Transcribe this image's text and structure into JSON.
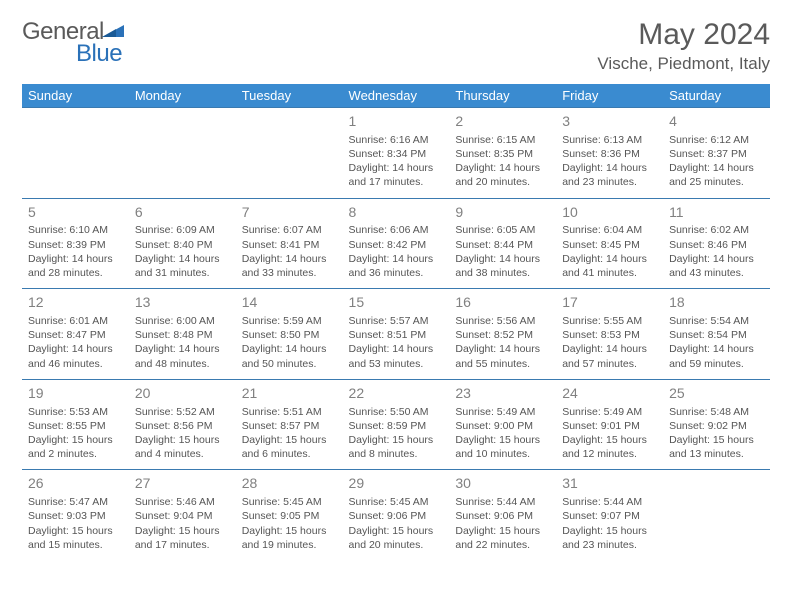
{
  "brand": {
    "part1": "General",
    "part2": "Blue"
  },
  "title": "May 2024",
  "location": "Vische, Piedmont, Italy",
  "colors": {
    "header_bg": "#3a8bd0",
    "header_text": "#ffffff",
    "border": "#3a7ab0",
    "text": "#555555",
    "daynum": "#808080",
    "brand_gray": "#5a5a5a",
    "brand_blue": "#2a71b8"
  },
  "day_headers": [
    "Sunday",
    "Monday",
    "Tuesday",
    "Wednesday",
    "Thursday",
    "Friday",
    "Saturday"
  ],
  "weeks": [
    [
      {
        "n": "",
        "sr": "",
        "ss": "",
        "dl": ""
      },
      {
        "n": "",
        "sr": "",
        "ss": "",
        "dl": ""
      },
      {
        "n": "",
        "sr": "",
        "ss": "",
        "dl": ""
      },
      {
        "n": "1",
        "sr": "Sunrise: 6:16 AM",
        "ss": "Sunset: 8:34 PM",
        "dl": "Daylight: 14 hours and 17 minutes."
      },
      {
        "n": "2",
        "sr": "Sunrise: 6:15 AM",
        "ss": "Sunset: 8:35 PM",
        "dl": "Daylight: 14 hours and 20 minutes."
      },
      {
        "n": "3",
        "sr": "Sunrise: 6:13 AM",
        "ss": "Sunset: 8:36 PM",
        "dl": "Daylight: 14 hours and 23 minutes."
      },
      {
        "n": "4",
        "sr": "Sunrise: 6:12 AM",
        "ss": "Sunset: 8:37 PM",
        "dl": "Daylight: 14 hours and 25 minutes."
      }
    ],
    [
      {
        "n": "5",
        "sr": "Sunrise: 6:10 AM",
        "ss": "Sunset: 8:39 PM",
        "dl": "Daylight: 14 hours and 28 minutes."
      },
      {
        "n": "6",
        "sr": "Sunrise: 6:09 AM",
        "ss": "Sunset: 8:40 PM",
        "dl": "Daylight: 14 hours and 31 minutes."
      },
      {
        "n": "7",
        "sr": "Sunrise: 6:07 AM",
        "ss": "Sunset: 8:41 PM",
        "dl": "Daylight: 14 hours and 33 minutes."
      },
      {
        "n": "8",
        "sr": "Sunrise: 6:06 AM",
        "ss": "Sunset: 8:42 PM",
        "dl": "Daylight: 14 hours and 36 minutes."
      },
      {
        "n": "9",
        "sr": "Sunrise: 6:05 AM",
        "ss": "Sunset: 8:44 PM",
        "dl": "Daylight: 14 hours and 38 minutes."
      },
      {
        "n": "10",
        "sr": "Sunrise: 6:04 AM",
        "ss": "Sunset: 8:45 PM",
        "dl": "Daylight: 14 hours and 41 minutes."
      },
      {
        "n": "11",
        "sr": "Sunrise: 6:02 AM",
        "ss": "Sunset: 8:46 PM",
        "dl": "Daylight: 14 hours and 43 minutes."
      }
    ],
    [
      {
        "n": "12",
        "sr": "Sunrise: 6:01 AM",
        "ss": "Sunset: 8:47 PM",
        "dl": "Daylight: 14 hours and 46 minutes."
      },
      {
        "n": "13",
        "sr": "Sunrise: 6:00 AM",
        "ss": "Sunset: 8:48 PM",
        "dl": "Daylight: 14 hours and 48 minutes."
      },
      {
        "n": "14",
        "sr": "Sunrise: 5:59 AM",
        "ss": "Sunset: 8:50 PM",
        "dl": "Daylight: 14 hours and 50 minutes."
      },
      {
        "n": "15",
        "sr": "Sunrise: 5:57 AM",
        "ss": "Sunset: 8:51 PM",
        "dl": "Daylight: 14 hours and 53 minutes."
      },
      {
        "n": "16",
        "sr": "Sunrise: 5:56 AM",
        "ss": "Sunset: 8:52 PM",
        "dl": "Daylight: 14 hours and 55 minutes."
      },
      {
        "n": "17",
        "sr": "Sunrise: 5:55 AM",
        "ss": "Sunset: 8:53 PM",
        "dl": "Daylight: 14 hours and 57 minutes."
      },
      {
        "n": "18",
        "sr": "Sunrise: 5:54 AM",
        "ss": "Sunset: 8:54 PM",
        "dl": "Daylight: 14 hours and 59 minutes."
      }
    ],
    [
      {
        "n": "19",
        "sr": "Sunrise: 5:53 AM",
        "ss": "Sunset: 8:55 PM",
        "dl": "Daylight: 15 hours and 2 minutes."
      },
      {
        "n": "20",
        "sr": "Sunrise: 5:52 AM",
        "ss": "Sunset: 8:56 PM",
        "dl": "Daylight: 15 hours and 4 minutes."
      },
      {
        "n": "21",
        "sr": "Sunrise: 5:51 AM",
        "ss": "Sunset: 8:57 PM",
        "dl": "Daylight: 15 hours and 6 minutes."
      },
      {
        "n": "22",
        "sr": "Sunrise: 5:50 AM",
        "ss": "Sunset: 8:59 PM",
        "dl": "Daylight: 15 hours and 8 minutes."
      },
      {
        "n": "23",
        "sr": "Sunrise: 5:49 AM",
        "ss": "Sunset: 9:00 PM",
        "dl": "Daylight: 15 hours and 10 minutes."
      },
      {
        "n": "24",
        "sr": "Sunrise: 5:49 AM",
        "ss": "Sunset: 9:01 PM",
        "dl": "Daylight: 15 hours and 12 minutes."
      },
      {
        "n": "25",
        "sr": "Sunrise: 5:48 AM",
        "ss": "Sunset: 9:02 PM",
        "dl": "Daylight: 15 hours and 13 minutes."
      }
    ],
    [
      {
        "n": "26",
        "sr": "Sunrise: 5:47 AM",
        "ss": "Sunset: 9:03 PM",
        "dl": "Daylight: 15 hours and 15 minutes."
      },
      {
        "n": "27",
        "sr": "Sunrise: 5:46 AM",
        "ss": "Sunset: 9:04 PM",
        "dl": "Daylight: 15 hours and 17 minutes."
      },
      {
        "n": "28",
        "sr": "Sunrise: 5:45 AM",
        "ss": "Sunset: 9:05 PM",
        "dl": "Daylight: 15 hours and 19 minutes."
      },
      {
        "n": "29",
        "sr": "Sunrise: 5:45 AM",
        "ss": "Sunset: 9:06 PM",
        "dl": "Daylight: 15 hours and 20 minutes."
      },
      {
        "n": "30",
        "sr": "Sunrise: 5:44 AM",
        "ss": "Sunset: 9:06 PM",
        "dl": "Daylight: 15 hours and 22 minutes."
      },
      {
        "n": "31",
        "sr": "Sunrise: 5:44 AM",
        "ss": "Sunset: 9:07 PM",
        "dl": "Daylight: 15 hours and 23 minutes."
      },
      {
        "n": "",
        "sr": "",
        "ss": "",
        "dl": ""
      }
    ]
  ]
}
